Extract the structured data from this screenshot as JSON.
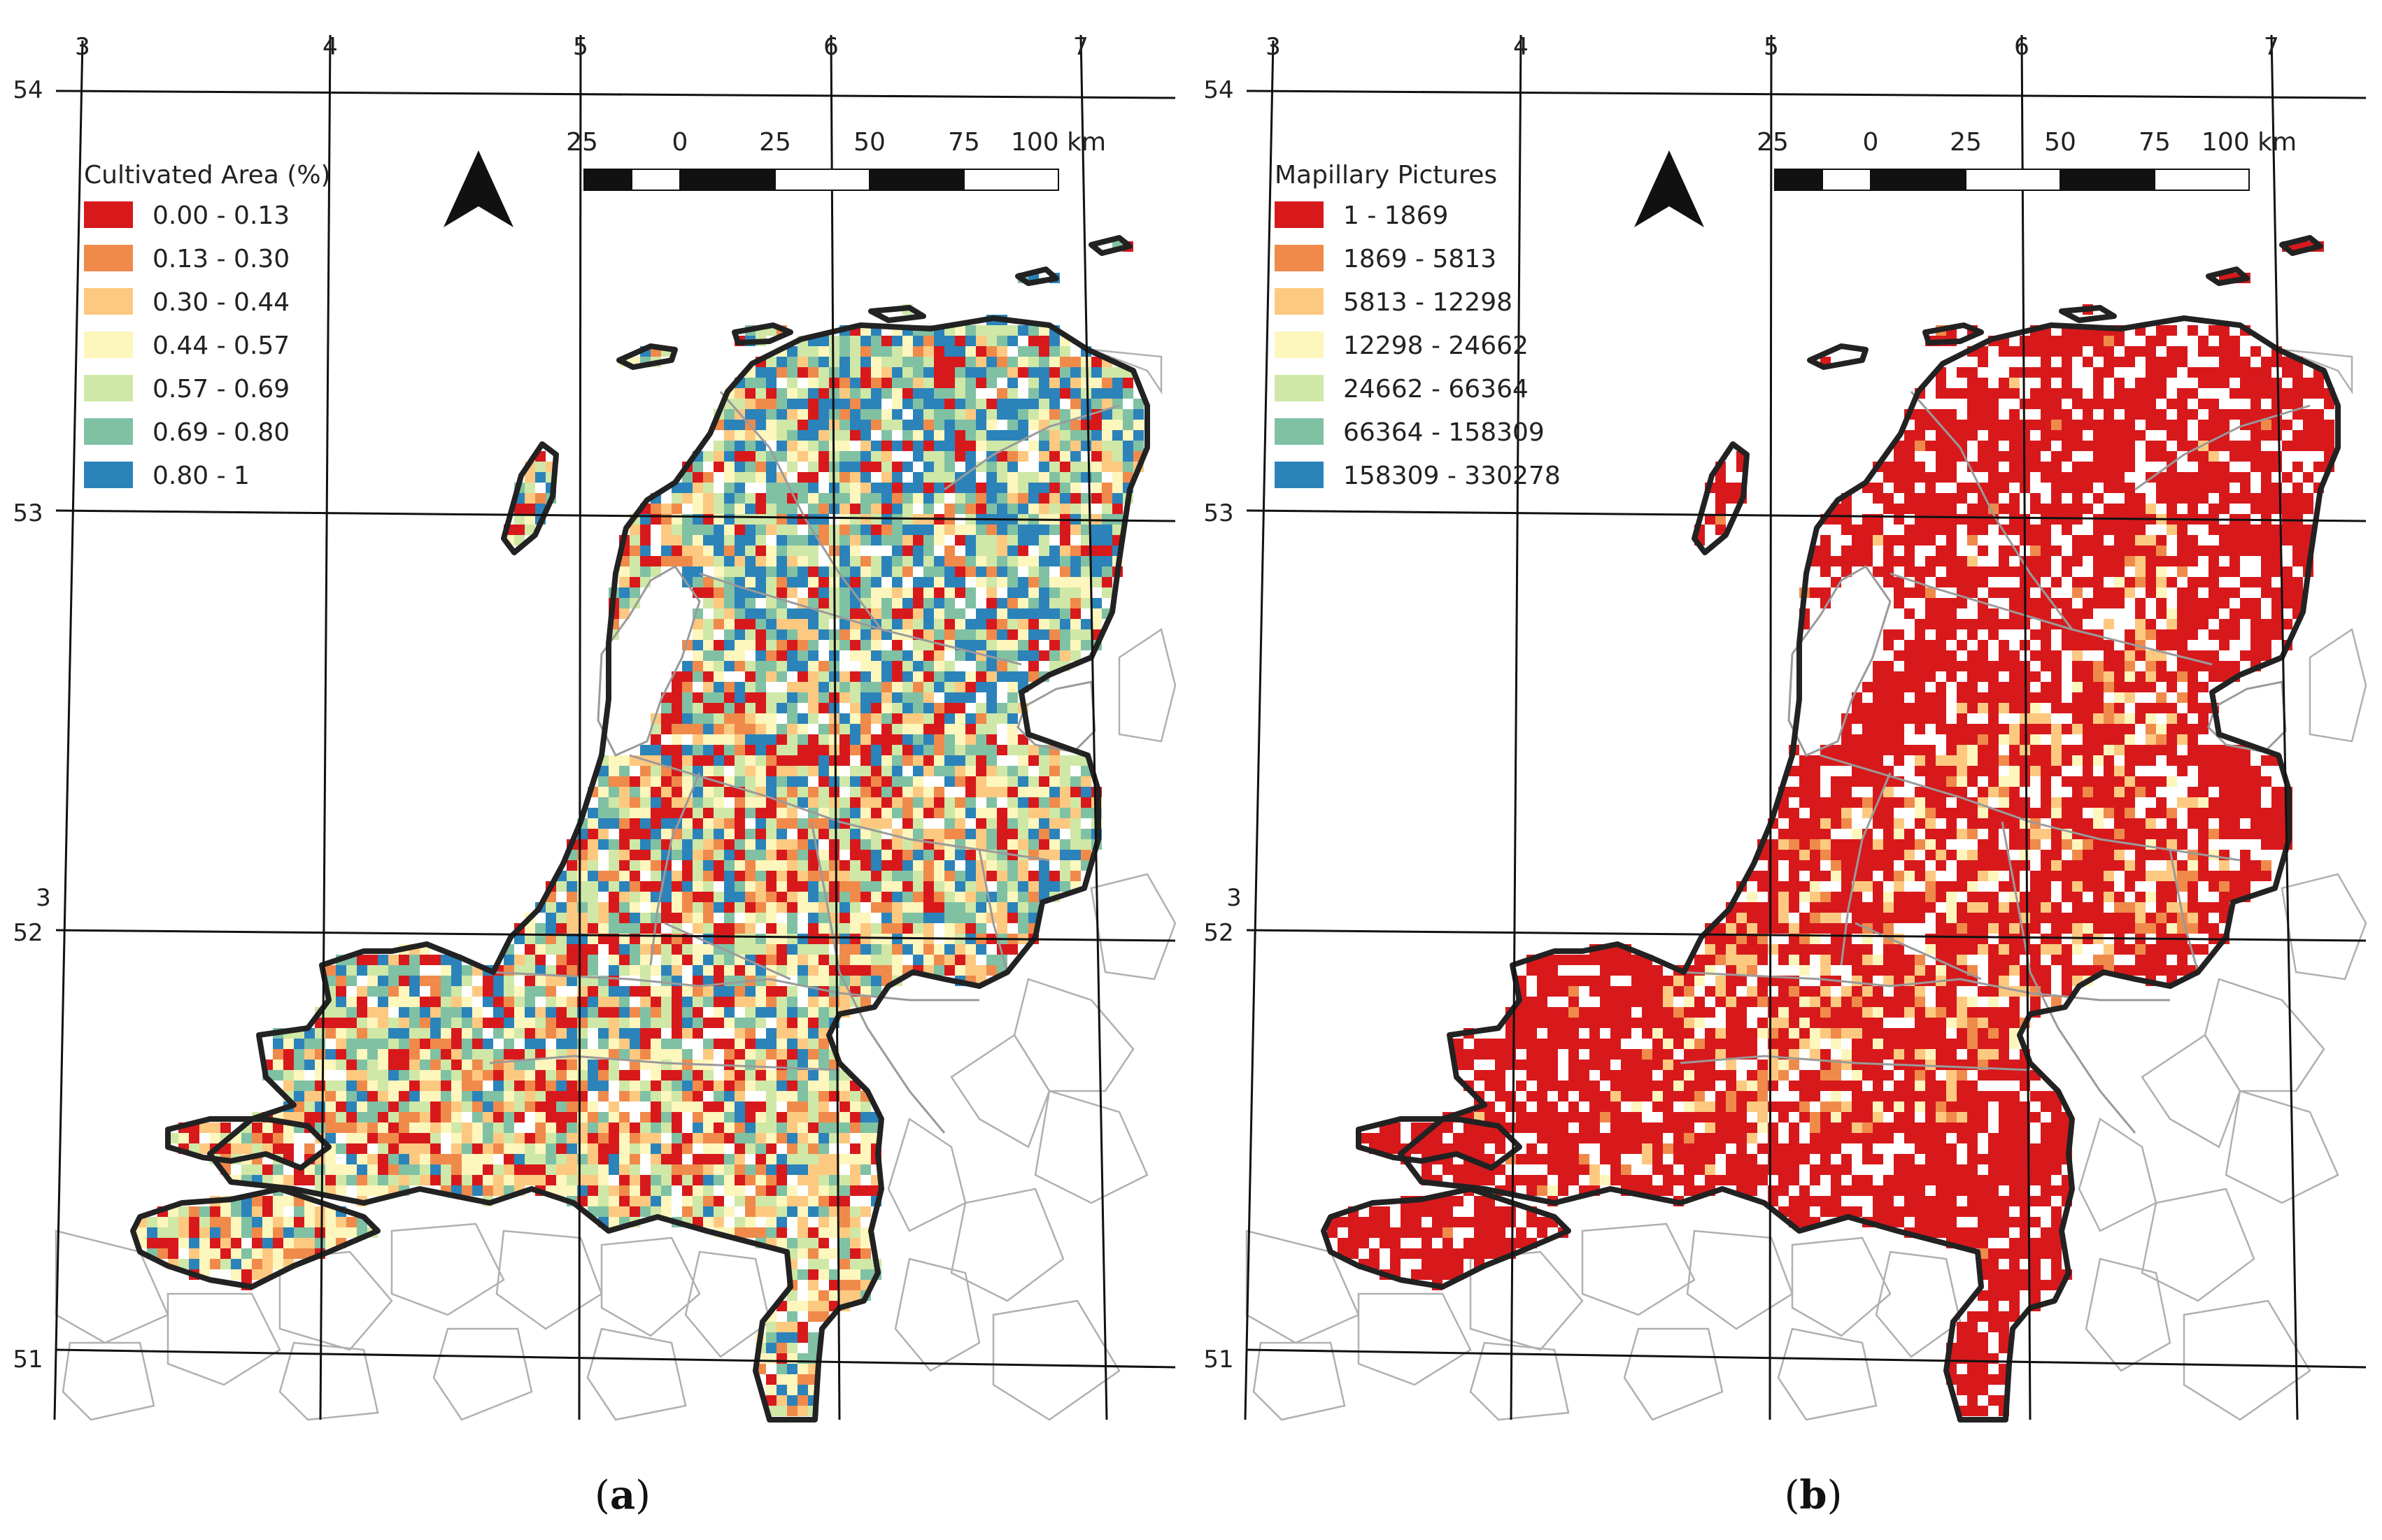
{
  "panels": [
    {
      "id": "a",
      "caption_letter": "a",
      "legend_title": "Cultivated Area (%)",
      "legend": [
        {
          "label": "0.00 - 0.13",
          "color": "#d7191c"
        },
        {
          "label": "0.13 - 0.30",
          "color": "#f08a4b"
        },
        {
          "label": "0.30 - 0.44",
          "color": "#fdc980"
        },
        {
          "label": "0.44 - 0.57",
          "color": "#fdf6bd"
        },
        {
          "label": "0.57 - 0.69",
          "color": "#cfe8a7"
        },
        {
          "label": "0.69 - 0.80",
          "color": "#80c1a4"
        },
        {
          "label": "0.80 - 1",
          "color": "#2b83ba"
        }
      ],
      "weights": [
        0.18,
        0.1,
        0.12,
        0.13,
        0.15,
        0.15,
        0.17
      ],
      "empty_fraction": 0.08
    },
    {
      "id": "b",
      "caption_letter": "b",
      "legend_title": "Mapillary Pictures",
      "legend": [
        {
          "label": "1 - 1869",
          "color": "#d7191c"
        },
        {
          "label": "1869 - 5813",
          "color": "#f08a4b"
        },
        {
          "label": "5813 - 12298",
          "color": "#fdc980"
        },
        {
          "label": "12298 - 24662",
          "color": "#fdf6bd"
        },
        {
          "label": "24662 - 66364",
          "color": "#cfe8a7"
        },
        {
          "label": "66364 - 158309",
          "color": "#80c1a4"
        },
        {
          "label": "158309 - 330278",
          "color": "#2b83ba"
        }
      ],
      "weights": [
        0.9,
        0.05,
        0.04,
        0.01,
        0,
        0,
        0
      ],
      "empty_fraction": 0.2
    }
  ],
  "longitude_labels": [
    "3",
    "4",
    "5",
    "6",
    "7"
  ],
  "latitude_labels": [
    "54",
    "53",
    "52",
    "51"
  ],
  "stray_label": "3",
  "scalebar": {
    "labels": [
      "25",
      "0",
      "25",
      "50",
      "75",
      "100 km"
    ]
  },
  "colors": {
    "border": "#222222",
    "graticule": "#111111",
    "province_lines": "#9a9a9a",
    "neighbor_lines": "#b0b0b0"
  }
}
